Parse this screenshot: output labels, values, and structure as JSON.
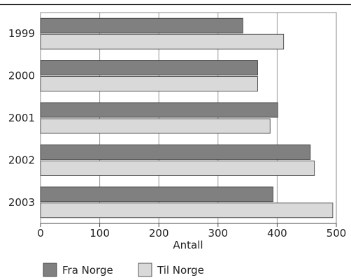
{
  "chart_data": {
    "type": "bar",
    "orientation": "horizontal",
    "categories": [
      "1999",
      "2000",
      "2001",
      "2002",
      "2003"
    ],
    "series": [
      {
        "name": "Fra Norge",
        "color": "#808080",
        "values": [
          342,
          367,
          401,
          456,
          393
        ]
      },
      {
        "name": "Til Norge",
        "color": "#d9d9d9",
        "values": [
          411,
          367,
          388,
          463,
          494
        ]
      }
    ],
    "xlabel": "Antall",
    "ylabel": "",
    "xlim": [
      0,
      500
    ],
    "xticks": [
      "0",
      "100",
      "200",
      "300",
      "400",
      "500"
    ],
    "grid": true,
    "legend_position": "bottom-left"
  }
}
